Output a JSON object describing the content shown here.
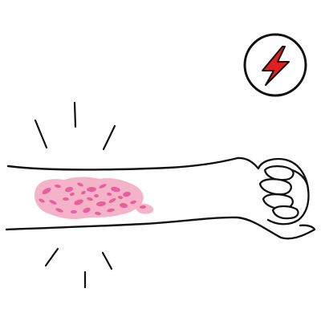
{
  "illustration": {
    "subject": "arm-with-rash",
    "icons": [
      "lightning-bolt-icon",
      "pain-burst-lines"
    ],
    "colors": {
      "outline": "#111111",
      "background": "#ffffff",
      "rash_light": "#f4b3c8",
      "rash_dark": "#e8609a",
      "bolt_red": "#e02020"
    }
  }
}
